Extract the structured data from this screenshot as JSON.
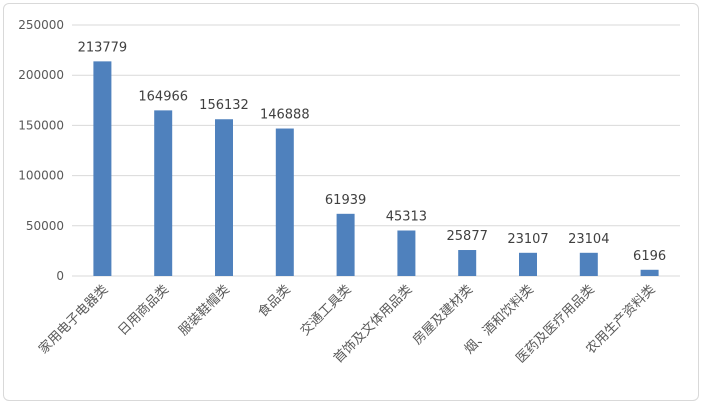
{
  "chart_data": {
    "type": "bar",
    "categories": [
      "家用电子电器类",
      "日用商品类",
      "服装鞋帽类",
      "食品类",
      "交通工具类",
      "首饰及文体用品类",
      "房屋及建材类",
      "烟、酒和饮料类",
      "医药及医疗用品类",
      "农用生产资料类"
    ],
    "values": [
      213779,
      164966,
      156132,
      146888,
      61939,
      45313,
      25877,
      23107,
      23104,
      6196
    ],
    "data_labels": [
      "213779",
      "164966",
      "156132",
      "146888",
      "61939",
      "45313",
      "25877",
      "23107",
      "23104",
      "6196"
    ],
    "yticks": [
      "0",
      "50000",
      "100000",
      "150000",
      "200000",
      "250000"
    ],
    "ylim": [
      0,
      250000
    ],
    "title": "",
    "xlabel": "",
    "ylabel": "",
    "grid": true,
    "legend": "none",
    "colors": {
      "bar": "#4f81bd",
      "grid": "#d9d9d9",
      "text": "#595959"
    }
  }
}
